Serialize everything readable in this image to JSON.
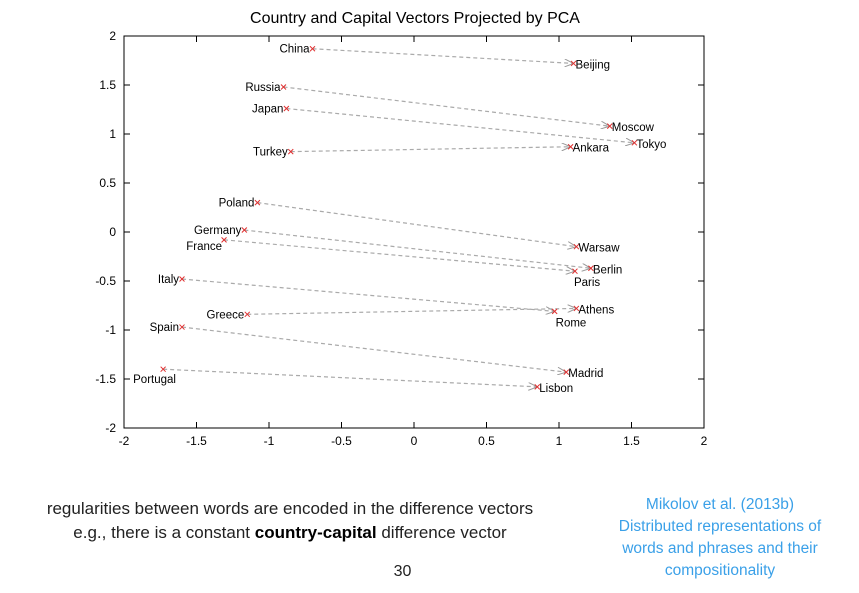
{
  "chart_data": {
    "type": "scatter",
    "title": "Country and Capital Vectors Projected by PCA",
    "xlim": [
      -2,
      2
    ],
    "ylim": [
      -2,
      2
    ],
    "xticks": [
      "-2",
      "-1.5",
      "-1",
      "-0.5",
      "0",
      "0.5",
      "1",
      "1.5",
      "2"
    ],
    "yticks": [
      "2",
      "1.5",
      "1",
      "0.5",
      "0",
      "-0.5",
      "-1",
      "-1.5",
      "-2"
    ],
    "grid": false,
    "colors": {
      "marker": "#e03030",
      "arrow": "#aaaaaa",
      "axis": "#000000"
    },
    "pairs": [
      {
        "country": "China",
        "cx": -0.7,
        "cy": 1.87,
        "capital": "Beijing",
        "kx": 1.1,
        "ky": 1.72
      },
      {
        "country": "Russia",
        "cx": -0.9,
        "cy": 1.48,
        "capital": "Moscow",
        "kx": 1.35,
        "ky": 1.08
      },
      {
        "country": "Japan",
        "cx": -0.88,
        "cy": 1.26,
        "capital": "Tokyo",
        "kx": 1.52,
        "ky": 0.91
      },
      {
        "country": "Turkey",
        "cx": -0.85,
        "cy": 0.82,
        "capital": "Ankara",
        "kx": 1.08,
        "ky": 0.87
      },
      {
        "country": "Poland",
        "cx": -1.08,
        "cy": 0.3,
        "capital": "Warsaw",
        "kx": 1.12,
        "ky": -0.15
      },
      {
        "country": "Germany",
        "cx": -1.17,
        "cy": 0.02,
        "capital": "Berlin",
        "kx": 1.22,
        "ky": -0.37
      },
      {
        "country": "France",
        "cx": -1.31,
        "cy": -0.08,
        "capital": "Paris",
        "kx": 1.11,
        "ky": -0.4
      },
      {
        "country": "Italy",
        "cx": -1.6,
        "cy": -0.48,
        "capital": "Rome",
        "kx": 0.97,
        "ky": -0.81
      },
      {
        "country": "Greece",
        "cx": -1.15,
        "cy": -0.84,
        "capital": "Athens",
        "kx": 1.12,
        "ky": -0.78
      },
      {
        "country": "Spain",
        "cx": -1.6,
        "cy": -0.97,
        "capital": "Madrid",
        "kx": 1.05,
        "ky": -1.43
      },
      {
        "country": "Portugal",
        "cx": -1.73,
        "cy": -1.4,
        "capital": "Lisbon",
        "kx": 0.85,
        "ky": -1.58
      }
    ]
  },
  "caption": {
    "line1": "regularities between words are encoded in the difference vectors",
    "line2_prefix": "e.g., there is a constant ",
    "line2_bold": "country-capital",
    "line2_suffix": " difference vector"
  },
  "citation": {
    "line1": "Mikolov et al. (2013b)",
    "line2": "Distributed representations of",
    "line3": "words and phrases and their",
    "line4": "compositionality"
  },
  "page_number": "30"
}
